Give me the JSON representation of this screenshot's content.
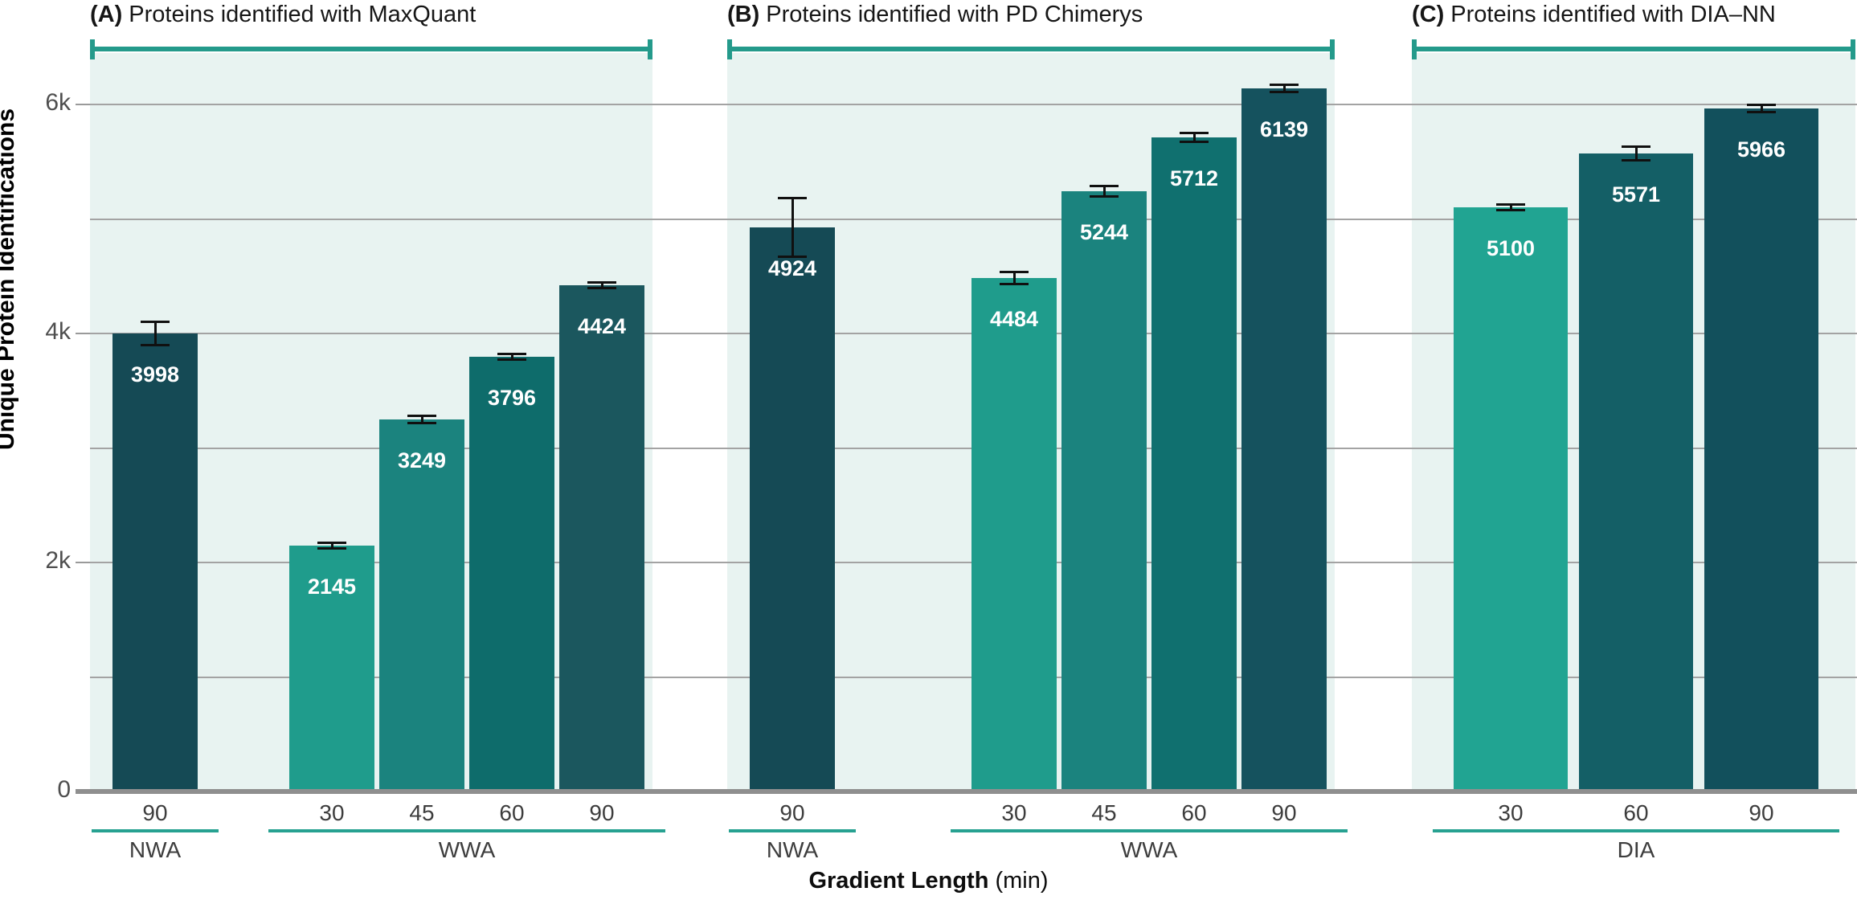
{
  "chart_data": {
    "type": "bar",
    "ylabel": "Unique Protein Identifications",
    "xlabel_bold": "Gradient Length",
    "xlabel_unit": "(min)",
    "ylim": [
      0,
      6450
    ],
    "gridline_step": 1000,
    "yticks": [
      {
        "value": 0,
        "label": "0"
      },
      {
        "value": 2000,
        "label": "2k"
      },
      {
        "value": 4000,
        "label": "4k"
      },
      {
        "value": 6000,
        "label": "6k"
      }
    ],
    "colors": {
      "bracket_teal": "#249a8b",
      "group_underline_teal": "#27a191",
      "panel_background": "#e8f3f1",
      "gridline_gray": "#a3a3a3",
      "axis_line_gray": "#8f8f8f",
      "bar_label_white": "#ffffff"
    },
    "panels": [
      {
        "prefix": "(A)",
        "title": "Proteins identified with MaxQuant",
        "groups": [
          {
            "name": "NWA",
            "bars": [
              {
                "tick": "90",
                "value": 3998,
                "err": 115,
                "color": "#154a55"
              }
            ]
          },
          {
            "name": "WWA",
            "bars": [
              {
                "tick": "30",
                "value": 2145,
                "err": 35,
                "color": "#1f9c8c"
              },
              {
                "tick": "45",
                "value": 3249,
                "err": 45,
                "color": "#1b837e"
              },
              {
                "tick": "60",
                "value": 3796,
                "err": 30,
                "color": "#0e6c6b"
              },
              {
                "tick": "90",
                "value": 4424,
                "err": 20,
                "color": "#1b575e"
              }
            ]
          }
        ]
      },
      {
        "prefix": "(B)",
        "title": "Proteins identified with PD Chimerys",
        "groups": [
          {
            "name": "NWA",
            "bars": [
              {
                "tick": "90",
                "value": 4924,
                "err": 270,
                "color": "#154a55"
              }
            ]
          },
          {
            "name": "WWA",
            "bars": [
              {
                "tick": "30",
                "value": 4484,
                "err": 60,
                "color": "#1f9c8c"
              },
              {
                "tick": "45",
                "value": 5244,
                "err": 55,
                "color": "#1b837e"
              },
              {
                "tick": "60",
                "value": 5712,
                "err": 50,
                "color": "#10706f"
              },
              {
                "tick": "90",
                "value": 6139,
                "err": 45,
                "color": "#15525e"
              }
            ]
          }
        ]
      },
      {
        "prefix": "(C)",
        "title": "Proteins identified with DIA–NN",
        "groups": [
          {
            "name": "DIA",
            "bars": [
              {
                "tick": "30",
                "value": 5100,
                "err": 25,
                "color": "#21a492"
              },
              {
                "tick": "60",
                "value": 5571,
                "err": 70,
                "color": "#145f66"
              },
              {
                "tick": "90",
                "value": 5966,
                "err": 40,
                "color": "#12505c"
              }
            ]
          }
        ]
      }
    ]
  }
}
